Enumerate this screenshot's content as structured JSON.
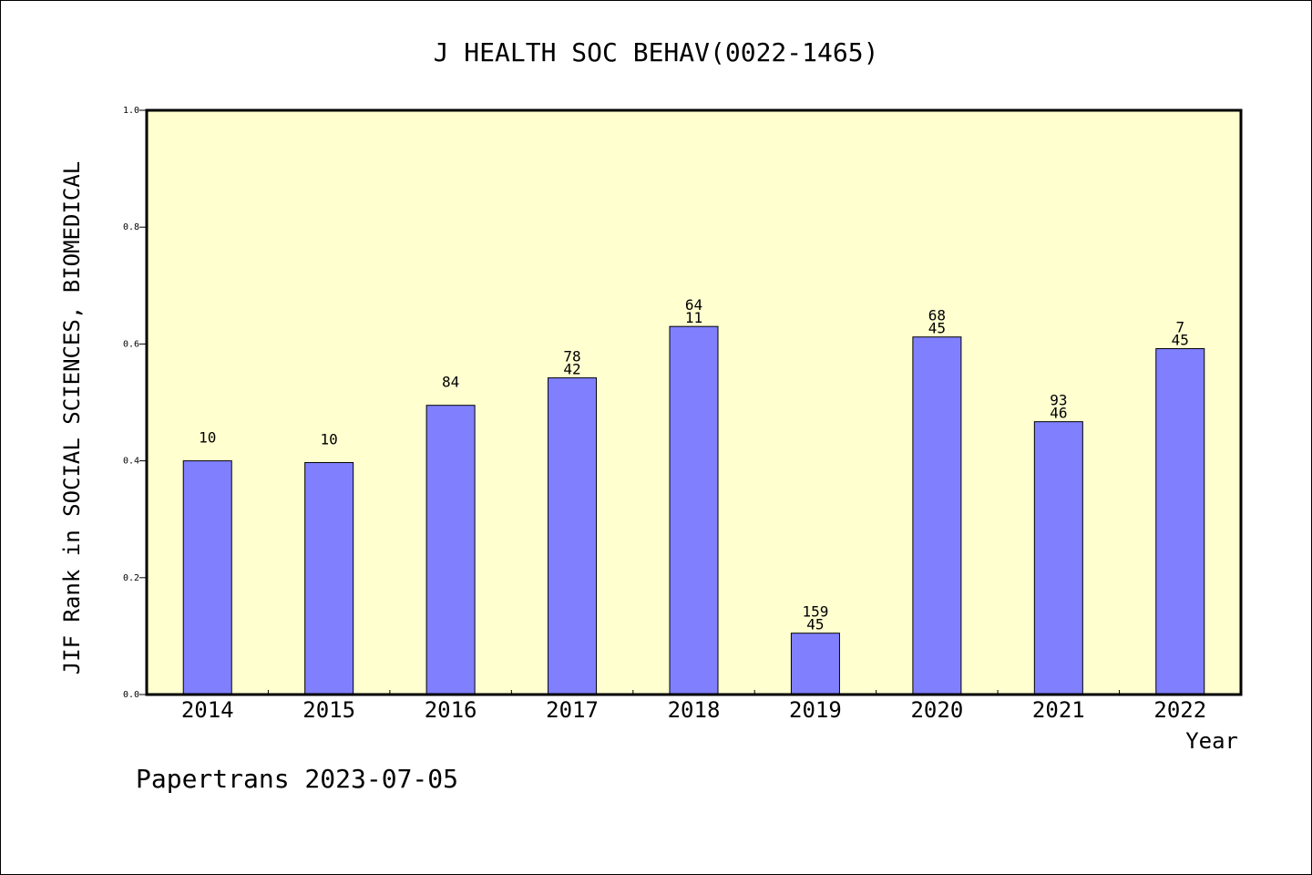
{
  "chart_data": {
    "type": "bar",
    "title": "J HEALTH SOC BEHAV(0022-1465)",
    "xlabel": "Year",
    "ylabel": "JIF Rank in SOCIAL SCIENCES, BIOMEDICAL",
    "ylim": [
      0,
      1.0
    ],
    "yticks": [
      "0.0",
      "0.2",
      "0.4",
      "0.6",
      "0.8",
      "1.0"
    ],
    "categories": [
      "2014",
      "2015",
      "2016",
      "2017",
      "2018",
      "2019",
      "2020",
      "2021",
      "2022"
    ],
    "values": [
      0.4,
      0.397,
      0.495,
      0.542,
      0.63,
      0.105,
      0.612,
      0.467,
      0.592
    ],
    "labels": [
      [
        "10"
      ],
      [
        "10"
      ],
      [
        "84"
      ],
      [
        "78",
        "42"
      ],
      [
        "64",
        "11"
      ],
      [
        "159",
        "45"
      ],
      [
        "68",
        "45"
      ],
      [
        "93",
        "46"
      ],
      [
        "7",
        "45"
      ]
    ],
    "grid": false,
    "colors": {
      "plot_background": "#ffffd0",
      "bar": "#8080ff",
      "bar_edge": "#000000"
    }
  },
  "footer": "Papertrans 2023-07-05"
}
